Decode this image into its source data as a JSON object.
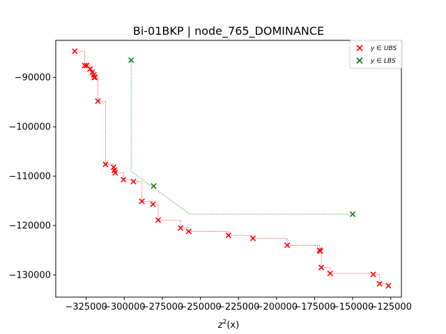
{
  "chart_data": {
    "type": "scatter",
    "title": "Bi-01BKP | node_765_DOMINANCE",
    "xlabel": "z²(x)",
    "xlabel_base": "z",
    "xlabel_sup": "2",
    "xlabel_arg": "(x)",
    "ylabel": "",
    "xlim": [
      -345000,
      -118000
    ],
    "ylim": [
      -134500,
      -82500
    ],
    "xticks": [
      -325000,
      -300000,
      -275000,
      -250000,
      -225000,
      -200000,
      -175000,
      -150000,
      -125000
    ],
    "xtick_labels": [
      "−325000",
      "−300000",
      "−275000",
      "−250000",
      "−225000",
      "−200000",
      "−175000",
      "−150000",
      "−125000"
    ],
    "yticks": [
      -90000,
      -100000,
      -110000,
      -120000,
      -130000
    ],
    "ytick_labels": [
      "−90000",
      "−100000",
      "−110000",
      "−120000",
      "−130000"
    ],
    "grid": false,
    "legend_position": "top-right",
    "series": [
      {
        "name": "y ∈ UBS",
        "color": "#ff0000",
        "marker": "x",
        "connect": "step",
        "points": [
          [
            -332500,
            -84700
          ],
          [
            -326000,
            -87600
          ],
          [
            -324700,
            -87600
          ],
          [
            -322500,
            -88300
          ],
          [
            -321000,
            -89000
          ],
          [
            -320000,
            -89500
          ],
          [
            -319800,
            -90000
          ],
          [
            -319300,
            -90000
          ],
          [
            -317300,
            -94800
          ],
          [
            -312300,
            -107600
          ],
          [
            -307000,
            -108200
          ],
          [
            -306500,
            -108800
          ],
          [
            -306000,
            -109300
          ],
          [
            -300500,
            -110700
          ],
          [
            -294000,
            -111100
          ],
          [
            -288400,
            -115100
          ],
          [
            -281200,
            -115700
          ],
          [
            -277700,
            -118900
          ],
          [
            -263000,
            -120500
          ],
          [
            -257700,
            -121200
          ],
          [
            -231600,
            -122000
          ],
          [
            -215500,
            -122600
          ],
          [
            -193000,
            -124000
          ],
          [
            -171700,
            -125000
          ],
          [
            -171300,
            -125200
          ],
          [
            -170600,
            -128500
          ],
          [
            -164800,
            -129700
          ],
          [
            -136500,
            -129900
          ],
          [
            -132300,
            -131800
          ],
          [
            -126500,
            -132200
          ]
        ]
      },
      {
        "name": "y ∈ LBS",
        "color": "#008000",
        "marker": "x",
        "connect": "path",
        "points": [
          [
            -295500,
            -86500
          ],
          [
            -280700,
            -112000
          ],
          [
            -150000,
            -117700
          ]
        ],
        "path": [
          [
            -295500,
            -86500
          ],
          [
            -295500,
            -109000
          ],
          [
            -257000,
            -117700
          ],
          [
            -150000,
            -117700
          ]
        ]
      }
    ]
  }
}
